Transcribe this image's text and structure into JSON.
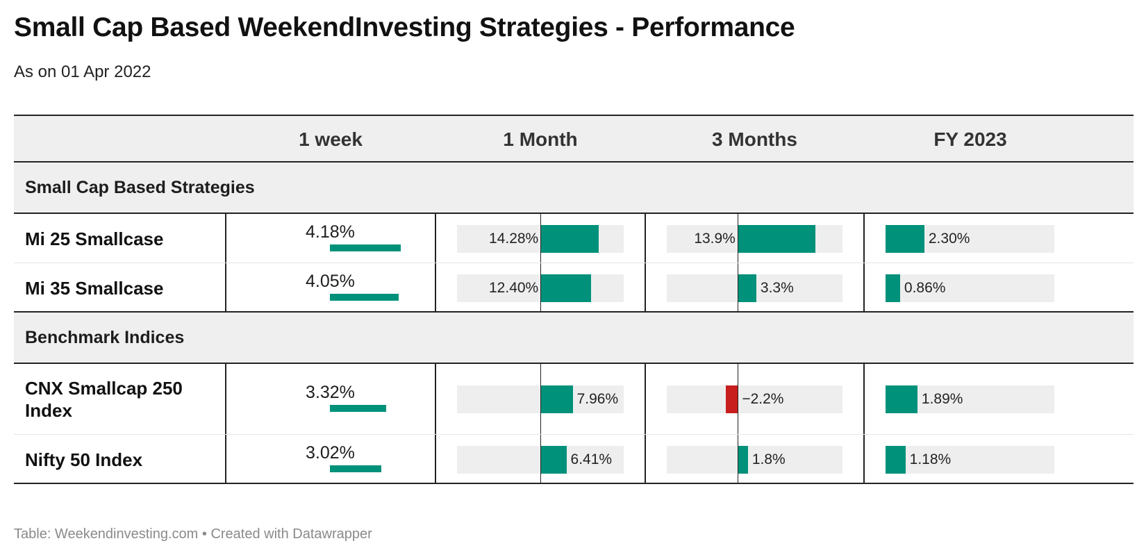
{
  "title": "Small Cap Based WeekendInvesting Strategies - Performance",
  "subtitle": "As on 01 Apr 2022",
  "footer": "Table: Weekendinvesting.com • Created with Datawrapper",
  "colors": {
    "positive": "#00917a",
    "negative": "#c81e1e",
    "track": "#eeeeee",
    "header_bg": "#efefef"
  },
  "chart_data": {
    "type": "table",
    "columns": [
      "",
      "1 week",
      "1 Month",
      "3 Months",
      "FY 2023"
    ],
    "groups": [
      {
        "name": "Small Cap Based Strategies",
        "rows": [
          {
            "name": "Mi 25 Smallcase",
            "week": 4.18,
            "week_label": "4.18%",
            "month": 14.28,
            "month_label": "14.28%",
            "three_months": 13.9,
            "three_months_label": "13.9%",
            "fy": 2.3,
            "fy_label": "2.30%"
          },
          {
            "name": "Mi 35 Smallcase",
            "week": 4.05,
            "week_label": "4.05%",
            "month": 12.4,
            "month_label": "12.40%",
            "three_months": 3.3,
            "three_months_label": "3.3%",
            "fy": 0.86,
            "fy_label": "0.86%"
          }
        ]
      },
      {
        "name": "Benchmark Indices",
        "rows": [
          {
            "name": "CNX Smallcap 250 Index",
            "week": 3.32,
            "week_label": "3.32%",
            "month": 7.96,
            "month_label": "7.96%",
            "three_months": -2.2,
            "three_months_label": "−2.2%",
            "fy": 1.89,
            "fy_label": "1.89%"
          },
          {
            "name": "Nifty 50 Index",
            "week": 3.02,
            "week_label": "3.02%",
            "month": 6.41,
            "month_label": "6.41%",
            "three_months": 1.8,
            "three_months_label": "1.8%",
            "fy": 1.18,
            "fy_label": "1.18%"
          }
        ]
      }
    ],
    "column_ranges": {
      "month": [
        -20.5,
        20.5
      ],
      "three_months": [
        -12.7,
        18.7
      ],
      "fy": [
        0,
        10
      ]
    }
  }
}
